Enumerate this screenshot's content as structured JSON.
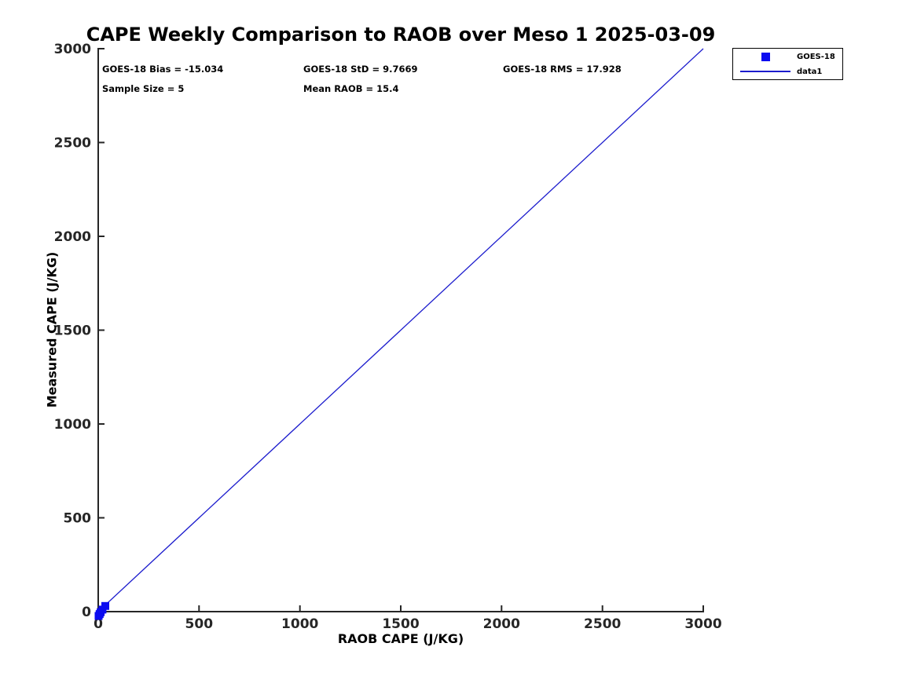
{
  "page": {
    "background": "#ffffff"
  },
  "colors": {
    "marker_blue": "#0b0bf0",
    "line_blue": "#1c1ccd",
    "axis_color": "#262626",
    "text_color": "#000000"
  },
  "chart": {
    "title": "CAPE Weekly Comparison to RAOB over Meso 1 2025-03-09",
    "xlabel": "RAOB CAPE (J/KG)",
    "ylabel": "Measured CAPE (J/KG)",
    "stats": {
      "bias": "GOES-18 Bias = -15.034",
      "std": "GOES-18 StD = 9.7669",
      "rms": "GOES-18 RMS = 17.928",
      "sample_size": "Sample Size = 5",
      "mean_raob": "Mean RAOB = 15.4"
    },
    "legend": {
      "entries": [
        {
          "label": "GOES-18",
          "type": "marker"
        },
        {
          "label": "data1",
          "type": "line"
        }
      ]
    }
  },
  "chart_data": {
    "type": "scatter",
    "title": "CAPE Weekly Comparison to RAOB over Meso 1 2025-03-09",
    "xlabel": "RAOB CAPE (J/KG)",
    "ylabel": "Measured CAPE (J/KG)",
    "xlim": [
      0,
      3000
    ],
    "ylim": [
      0,
      3000
    ],
    "x_ticks": [
      0,
      500,
      1000,
      1500,
      2000,
      2500,
      3000
    ],
    "y_ticks": [
      0,
      500,
      1000,
      1500,
      2000,
      2500,
      3000
    ],
    "grid": false,
    "axis_style": "open-L",
    "legend_position": "outside-top-right",
    "series": [
      {
        "name": "data1",
        "type": "line",
        "color": "#1c1ccd",
        "points": [
          [
            0,
            0
          ],
          [
            3000,
            3000
          ]
        ],
        "description": "1:1 identity reference line"
      },
      {
        "name": "GOES-18",
        "type": "scatter",
        "marker": "square",
        "color": "#0b0bf0",
        "points": [
          [
            2,
            -23
          ],
          [
            7,
            -13
          ],
          [
            12,
            -3
          ],
          [
            21,
            11
          ],
          [
            35,
            30
          ]
        ],
        "points_estimated": true,
        "description": "5 points clustered at origin, consistent with stats shown"
      }
    ],
    "stats": {
      "goes18_bias": -15.034,
      "goes18_std": 9.7669,
      "goes18_rms": 17.928,
      "sample_size": 5,
      "mean_raob": 15.4
    }
  }
}
